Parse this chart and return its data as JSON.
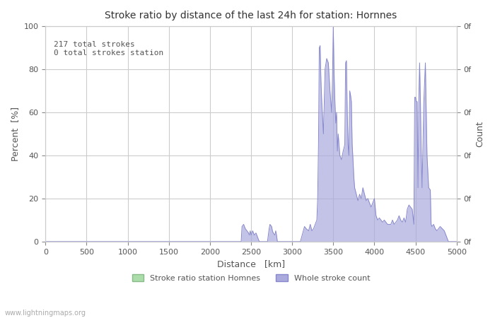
{
  "title": "Stroke ratio by distance of the last 24h for station: Hornnes",
  "xlabel": "Distance   [km]",
  "ylabel_left": "Percent  [%]",
  "ylabel_right": "Count",
  "annotation": "217 total strokes\n0 total strokes station",
  "xlim": [
    0,
    5000
  ],
  "ylim": [
    0,
    100
  ],
  "xticks": [
    0,
    500,
    1000,
    1500,
    2000,
    2500,
    3000,
    3500,
    4000,
    4500,
    5000
  ],
  "yticks_left": [
    0,
    20,
    40,
    60,
    80,
    100
  ],
  "yticks_right_labels": [
    "0f",
    "0f",
    "0f",
    "0f",
    "0f",
    "0f"
  ],
  "right_tick_positions": [
    0,
    20,
    40,
    60,
    80,
    100
  ],
  "legend_labels": [
    "Stroke ratio station Homnes",
    "Whole stroke count"
  ],
  "legend_colors": [
    "#aaddaa",
    "#bbbbee"
  ],
  "bg_color": "#ffffff",
  "grid_color": "#cccccc",
  "watermark": "www.lightningmaps.org",
  "blue_fill_color": "#aaaadd",
  "blue_line_color": "#8888cc",
  "green_fill_color": "#aaddaa",
  "green_line_color": "#88bb88",
  "blue_data_x": [
    0,
    2380,
    2390,
    2410,
    2430,
    2450,
    2470,
    2480,
    2490,
    2500,
    2510,
    2520,
    2540,
    2560,
    2580,
    2600,
    2700,
    2720,
    2730,
    2750,
    2760,
    2770,
    2790,
    2800,
    2810,
    2820,
    2900,
    3100,
    3150,
    3170,
    3200,
    3220,
    3240,
    3260,
    3280,
    3300,
    3310,
    3320,
    3330,
    3340,
    3350,
    3360,
    3380,
    3400,
    3420,
    3440,
    3460,
    3480,
    3490,
    3500,
    3510,
    3520,
    3530,
    3540,
    3550,
    3560,
    3580,
    3600,
    3620,
    3640,
    3650,
    3660,
    3670,
    3680,
    3690,
    3700,
    3710,
    3720,
    3730,
    3740,
    3750,
    3760,
    3780,
    3800,
    3820,
    3840,
    3860,
    3880,
    3900,
    3920,
    3940,
    3960,
    3980,
    4000,
    4020,
    4040,
    4060,
    4080,
    4100,
    4120,
    4140,
    4160,
    4200,
    4220,
    4240,
    4280,
    4300,
    4320,
    4340,
    4360,
    4380,
    4400,
    4410,
    4420,
    4440,
    4460,
    4480,
    4490,
    4500,
    4510,
    4520,
    4530,
    4540,
    4550,
    4560,
    4570,
    4580,
    4600,
    4620,
    4640,
    4660,
    4680,
    4690,
    4700,
    4720,
    4740,
    4760,
    4780,
    4800,
    4850,
    4900,
    4950,
    5000
  ],
  "blue_data_y": [
    0,
    0,
    7,
    8,
    6,
    5,
    4,
    3,
    5,
    3,
    4,
    5,
    3,
    4,
    2,
    0,
    0,
    6,
    8,
    7,
    5,
    4,
    3,
    5,
    3,
    0,
    0,
    0,
    7,
    6,
    5,
    8,
    5,
    6,
    8,
    10,
    20,
    45,
    90,
    91,
    75,
    65,
    50,
    80,
    85,
    83,
    70,
    60,
    75,
    100,
    78,
    65,
    55,
    60,
    42,
    50,
    40,
    38,
    42,
    45,
    83,
    84,
    60,
    45,
    40,
    70,
    68,
    65,
    45,
    38,
    30,
    25,
    22,
    19,
    22,
    20,
    25,
    22,
    19,
    20,
    18,
    16,
    18,
    20,
    12,
    10,
    11,
    10,
    9,
    10,
    9,
    8,
    8,
    10,
    8,
    10,
    12,
    10,
    9,
    11,
    9,
    15,
    16,
    17,
    16,
    15,
    8,
    67,
    67,
    65,
    65,
    25,
    67,
    83,
    65,
    40,
    25,
    64,
    83,
    40,
    25,
    24,
    8,
    7,
    8,
    6,
    5,
    6,
    7,
    5,
    0,
    0,
    0
  ]
}
